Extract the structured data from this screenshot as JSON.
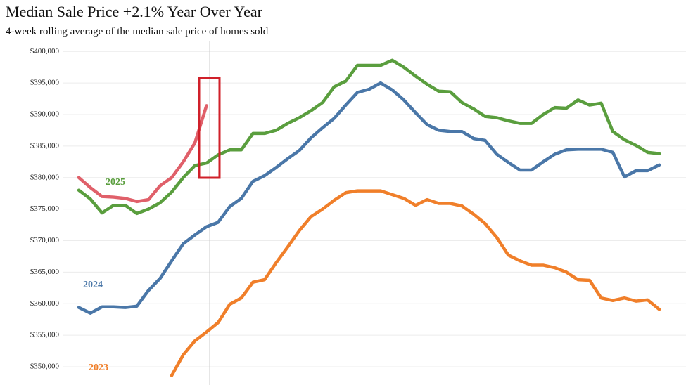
{
  "chart_data": {
    "type": "line",
    "title": "Median Sale Price +2.1% Year Over Year",
    "subtitle": "4-week rolling average of the median sale price of homes sold",
    "categories": [
      null,
      null,
      null,
      null,
      null,
      null,
      null,
      null,
      null,
      null,
      null,
      null,
      null,
      null,
      null,
      null,
      null,
      null,
      null,
      null,
      null,
      null,
      null,
      null,
      null,
      null,
      null,
      null,
      null,
      null,
      null,
      null,
      null,
      null,
      null,
      null,
      null,
      null,
      null,
      null,
      null,
      null,
      null,
      null,
      null,
      null,
      null,
      null,
      null,
      null,
      null
    ],
    "series": [
      {
        "name": "2025",
        "color": "#5a9e3e",
        "values": [
          378000,
          376600,
          374400,
          375600,
          375600,
          374300,
          375000,
          376000,
          377700,
          380000,
          381900,
          382300,
          383600,
          384400,
          384400,
          387000,
          387000,
          387500,
          388600,
          389500,
          390600,
          391900,
          394400,
          395300,
          397800,
          397800,
          397800,
          398600,
          397500,
          396100,
          394800,
          393700,
          393600,
          391900,
          390900,
          389700,
          389500,
          389000,
          388600,
          388600,
          390000,
          391100,
          391000,
          392300,
          391500,
          391800,
          387300,
          386000,
          385100,
          384000,
          383800
        ]
      },
      {
        "name": "2024",
        "color": "#4a77a8",
        "values": [
          359400,
          358500,
          359500,
          359500,
          359400,
          359600,
          362100,
          364000,
          366800,
          369500,
          370900,
          372200,
          372900,
          375400,
          376700,
          379400,
          380300,
          381600,
          383000,
          384300,
          386300,
          387900,
          389400,
          391500,
          393500,
          394000,
          395000,
          393900,
          392300,
          390300,
          388400,
          387500,
          387300,
          387300,
          386200,
          385900,
          383700,
          382400,
          381200,
          381200,
          382500,
          383700,
          384400,
          384500,
          384500,
          384500,
          384000,
          380100,
          381100,
          381100,
          382000
        ]
      },
      {
        "name": "2023",
        "color": "#f07f2a",
        "values": [
          null,
          null,
          null,
          null,
          null,
          null,
          null,
          null,
          348600,
          351900,
          354100,
          355500,
          357000,
          359900,
          360900,
          363400,
          363800,
          366500,
          369000,
          371600,
          373800,
          375000,
          376400,
          377600,
          377900,
          377900,
          377900,
          377300,
          376700,
          375600,
          376500,
          375900,
          375900,
          375500,
          374200,
          372700,
          370500,
          367700,
          366800,
          366100,
          366100,
          365700,
          365000,
          363800,
          363700,
          360900,
          360500,
          360900,
          360400,
          360600,
          359100
        ]
      },
      {
        "color": "#e0606a",
        "values": [
          380000,
          378400,
          377000,
          376900,
          376700,
          376200,
          376500,
          378700,
          380000,
          382500,
          385500,
          391400,
          null,
          null,
          null,
          null,
          null,
          null,
          null,
          null,
          null,
          null,
          null,
          null,
          null,
          null,
          null,
          null,
          null,
          null,
          null,
          null,
          null,
          null,
          null,
          null,
          null,
          null,
          null,
          null,
          null,
          null,
          null,
          null,
          null,
          null,
          null,
          null,
          null,
          null,
          null
        ]
      }
    ],
    "ylim": [
      347100,
      401700
    ],
    "yticks": [
      {
        "value": 350000,
        "label": "$350,000"
      },
      {
        "value": 355000,
        "label": "$355,000"
      },
      {
        "value": 360000,
        "label": "$360,000"
      },
      {
        "value": 365000,
        "label": "$365,000"
      },
      {
        "value": 370000,
        "label": "$370,000"
      },
      {
        "value": 375000,
        "label": "$375,000"
      },
      {
        "value": 380000,
        "label": "$380,000"
      },
      {
        "value": 385000,
        "label": "$385,000"
      },
      {
        "value": 390000,
        "label": "$390,000"
      },
      {
        "value": 395000,
        "label": "$395,000"
      },
      {
        "value": 400000,
        "label": "$400,000"
      }
    ],
    "grid": true
  }
}
